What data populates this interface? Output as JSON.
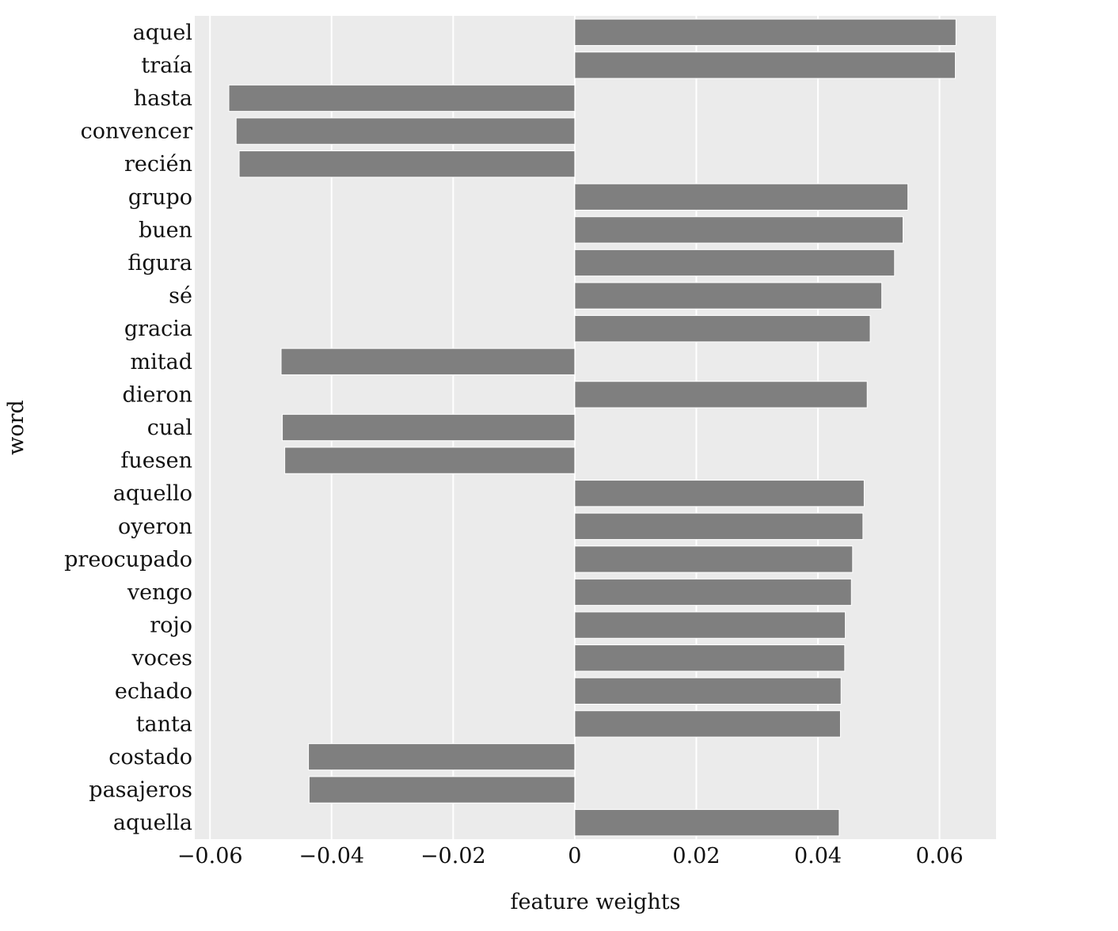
{
  "chart_data": {
    "type": "bar",
    "orientation": "horizontal",
    "xlabel": "feature weights",
    "ylabel": "word",
    "xlim": [
      -0.0625,
      0.0693
    ],
    "xticks": [
      -0.06,
      -0.04,
      -0.02,
      0,
      0.02,
      0.04,
      0.06
    ],
    "xtick_labels": [
      "−0.06",
      "−0.04",
      "−0.02",
      "0",
      "0.02",
      "0.04",
      "0.06"
    ],
    "grid": true,
    "colors": {
      "bar": "#7f7f7f",
      "plot_bg": "#ebebeb",
      "grid": "#ffffff"
    },
    "categories": [
      "aquel",
      "traía",
      "hasta",
      "convencer",
      "recién",
      "grupo",
      "buen",
      "figura",
      "sé",
      "gracia",
      "mitad",
      "dieron",
      "cual",
      "fuesen",
      "aquello",
      "oyeron",
      "preocupado",
      "vengo",
      "rojo",
      "voces",
      "echado",
      "tanta",
      "costado",
      "pasajeros",
      "aquella"
    ],
    "values": [
      0.0627,
      0.0626,
      -0.0569,
      -0.0557,
      -0.0552,
      0.0548,
      0.054,
      0.0526,
      0.0505,
      0.0486,
      -0.0483,
      0.0481,
      -0.0481,
      -0.0477,
      0.0476,
      0.0474,
      0.0457,
      0.0455,
      0.0445,
      0.0444,
      0.0438,
      0.0437,
      -0.0438,
      -0.0437,
      0.0435
    ]
  }
}
